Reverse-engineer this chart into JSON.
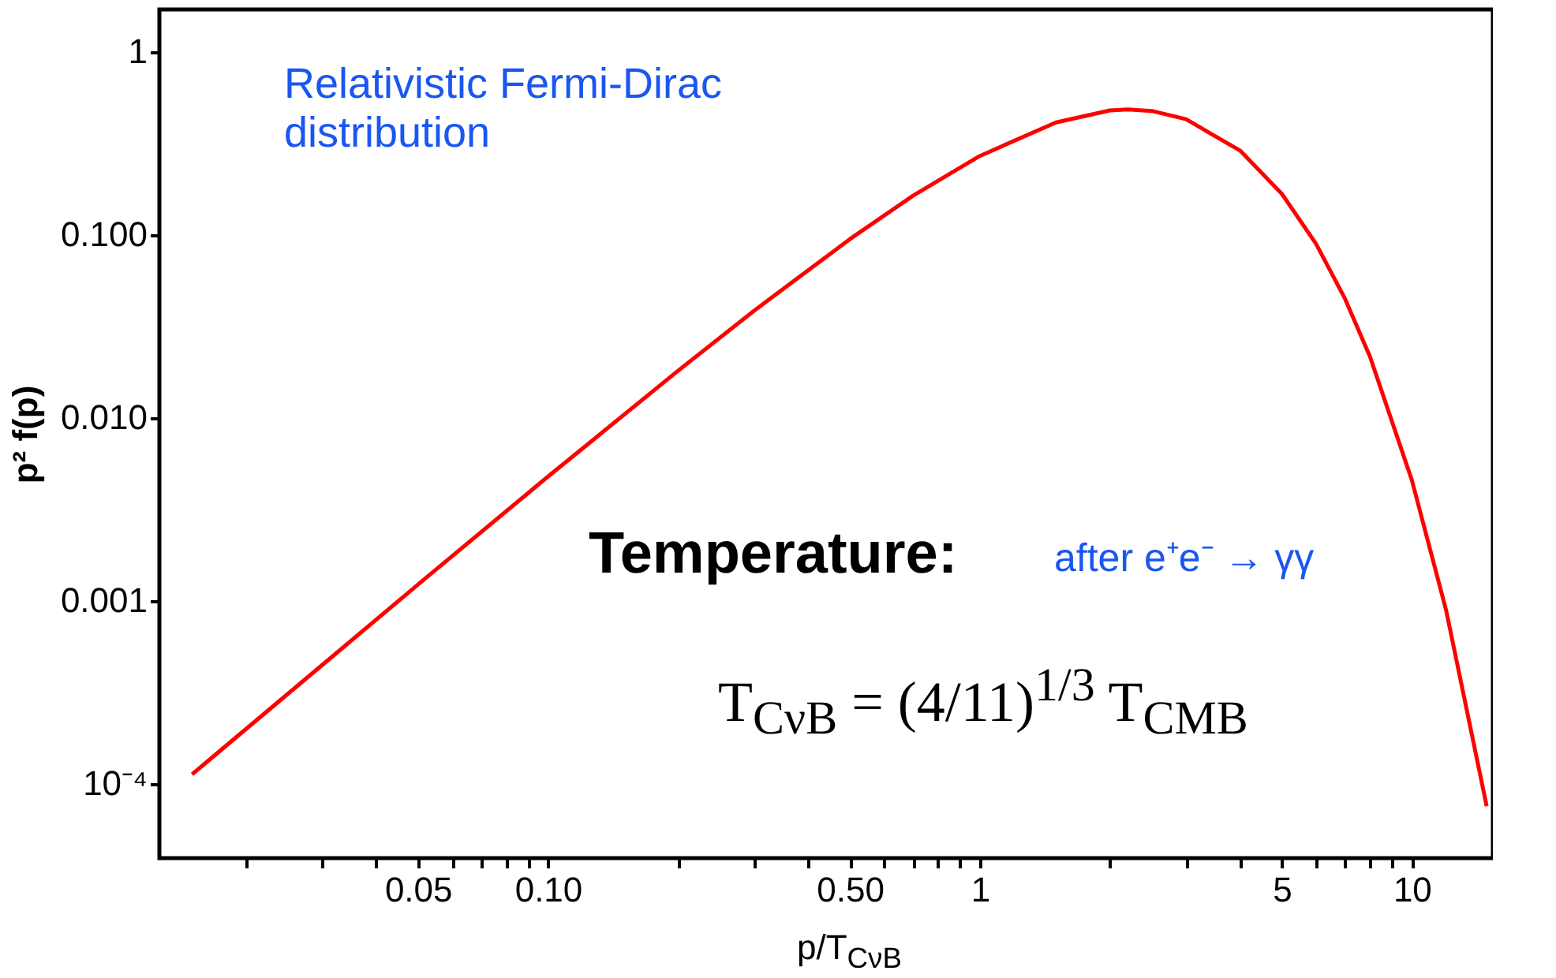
{
  "chart_data": {
    "type": "line",
    "xlabel": "p/T$_{CνB}$",
    "ylabel": "p² f(p)",
    "log": "xy",
    "grid": false,
    "legend": false,
    "annotations": [
      "Relativistic Fermi-Dirac distribution",
      "Temperature:",
      "after e⁺e⁻ → γγ",
      "T$_{CνB}$ = (4/11)$^{1/3}$ T$_{CMB}$"
    ],
    "xlim": [
      0.0126,
      15.4
    ],
    "ylim": [
      3.9e-05,
      1.7
    ],
    "xticks": [
      {
        "value": 0.02,
        "label": null
      },
      {
        "value": 0.03,
        "label": null
      },
      {
        "value": 0.04,
        "label": null
      },
      0.05,
      {
        "value": 0.06,
        "label": null
      },
      {
        "value": 0.07,
        "label": null
      },
      {
        "value": 0.08,
        "label": null
      },
      {
        "value": 0.09,
        "label": null
      },
      {
        "value": 0.1,
        "label": "0.10"
      },
      {
        "value": 0.2,
        "label": null
      },
      {
        "value": 0.3,
        "label": null
      },
      {
        "value": 0.4,
        "label": null
      },
      {
        "value": 0.5,
        "label": "0.50"
      },
      {
        "value": 0.6,
        "label": null
      },
      {
        "value": 0.7,
        "label": null
      },
      {
        "value": 0.8,
        "label": null
      },
      {
        "value": 0.9,
        "label": null
      },
      1,
      {
        "value": 2,
        "label": null
      },
      {
        "value": 3,
        "label": null
      },
      {
        "value": 4,
        "label": null
      },
      5,
      {
        "value": 6,
        "label": null
      },
      {
        "value": 7,
        "label": null
      },
      {
        "value": 8,
        "label": null
      },
      {
        "value": 9,
        "label": null
      },
      10
    ],
    "yticks": [
      {
        "value": 0.0001,
        "label": "10⁻⁴"
      },
      {
        "value": 0.001,
        "label": "0.001"
      },
      {
        "value": 0.01,
        "label": "0.010"
      },
      {
        "value": 0.1,
        "label": "0.100"
      },
      1
    ],
    "x": [
      0.015,
      0.03,
      0.05,
      0.1,
      0.2,
      0.3,
      0.5,
      0.7,
      1,
      1.5,
      2,
      2.2,
      2.5,
      3,
      4,
      5,
      6,
      7,
      8,
      10,
      12,
      14.9
    ],
    "series": [
      {
        "color": "#ff0000",
        "values": [
          0.000112,
          0.000443,
          0.00122,
          0.00475,
          0.018,
          0.0383,
          0.0944,
          0.163,
          0.269,
          0.41,
          0.477,
          0.483,
          0.474,
          0.427,
          0.288,
          0.167,
          0.089,
          0.0446,
          0.0215,
          0.00454,
          0.000885,
          7.5e-05
        ]
      }
    ]
  }
}
